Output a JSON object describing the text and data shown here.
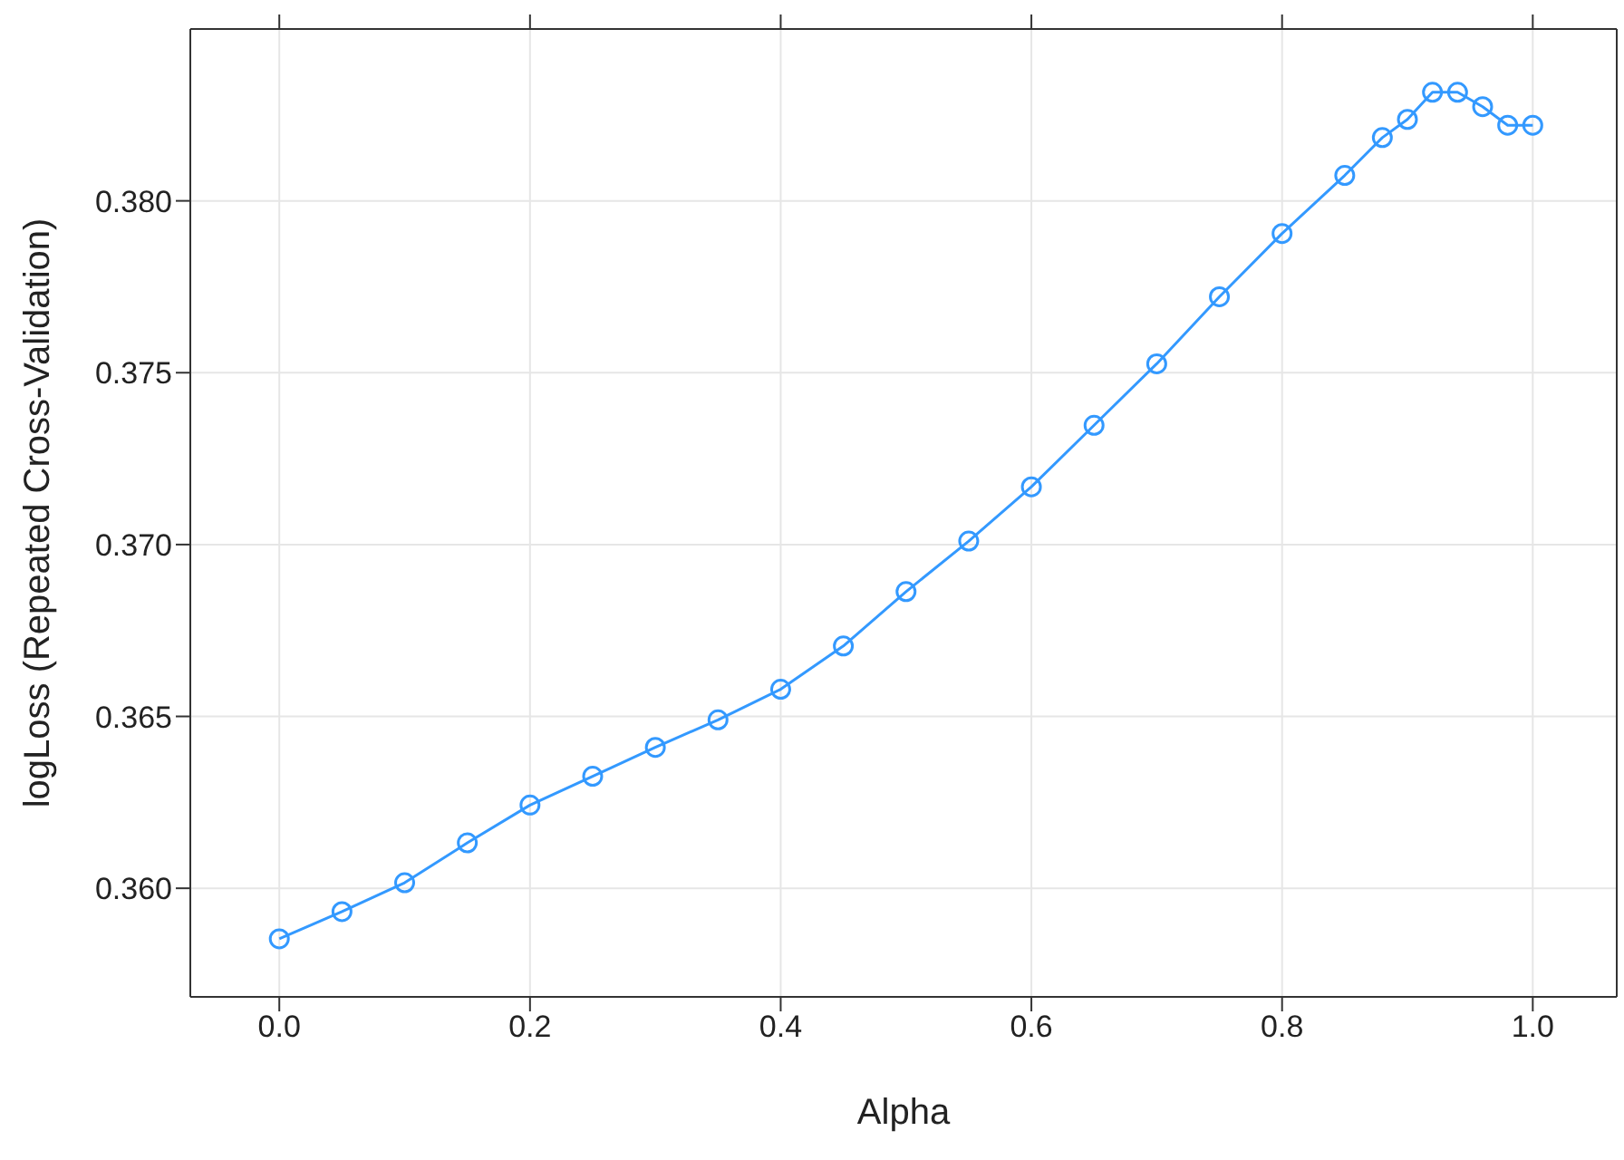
{
  "chart_data": {
    "type": "line",
    "xlabel": "Alpha",
    "ylabel": "logLoss (Repeated Cross-Validation)",
    "x": [
      0,
      0.05,
      0.1,
      0.15,
      0.2,
      0.25,
      0.3,
      0.35,
      0.4,
      0.45,
      0.5,
      0.55,
      0.6,
      0.65,
      0.7,
      0.75,
      0.8,
      0.85,
      0.88,
      0.9,
      0.92,
      0.94,
      0.96,
      0.98,
      1.0
    ],
    "series": [
      {
        "color": "#3399ff",
        "values": [
          0.35853,
          0.35932,
          0.36016,
          0.36132,
          0.36242,
          0.36326,
          0.3641,
          0.3649,
          0.36579,
          0.36705,
          0.36863,
          0.3701,
          0.37168,
          0.37347,
          0.37526,
          0.37721,
          0.37905,
          0.38074,
          0.38184,
          0.38237,
          0.38316,
          0.38316,
          0.38274,
          0.3822,
          0.3822
        ]
      }
    ],
    "xlim": [
      -0.071,
      1.067
    ],
    "ylim": [
      0.35684,
      0.385
    ],
    "xticks": [
      {
        "value": 0,
        "label": "0.0"
      },
      {
        "value": 0.2,
        "label": "0.2"
      },
      {
        "value": 0.4,
        "label": "0.4"
      },
      {
        "value": 0.6,
        "label": "0.6"
      },
      {
        "value": 0.8,
        "label": "0.8"
      },
      {
        "value": 1,
        "label": "1.0"
      }
    ],
    "yticks": [
      {
        "value": 0.36,
        "label": "0.360"
      },
      {
        "value": 0.365,
        "label": "0.365"
      },
      {
        "value": 0.37,
        "label": "0.370"
      },
      {
        "value": 0.375,
        "label": "0.375"
      },
      {
        "value": 0.38,
        "label": "0.380"
      }
    ],
    "grid": true,
    "marker": "circle",
    "line_style": "solid"
  }
}
